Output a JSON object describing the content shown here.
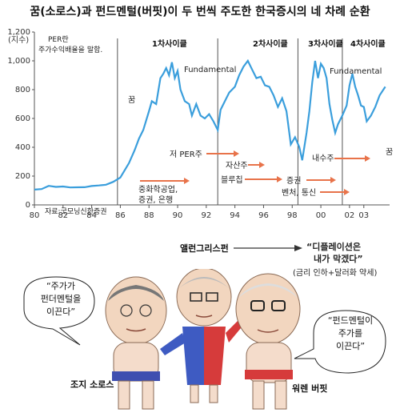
{
  "title": "꿈(소로스)과 펀드멘털(버핏)이 두 번씩 주도한 한국증시의 네 차례 순환",
  "chart_data": {
    "type": "line",
    "ylabel": "(지수)",
    "ylim": [
      0,
      1200
    ],
    "yticks": [
      0,
      200,
      400,
      600,
      800,
      1000,
      1200
    ],
    "ytick_labels": [
      "0",
      "200",
      "400",
      "600",
      "800",
      "1,000",
      "1,200"
    ],
    "xlim": [
      1980,
      2004.8
    ],
    "xticks": [
      1980,
      1982,
      1984,
      1986,
      1988,
      1990,
      1992,
      1994,
      1996,
      1998,
      2000,
      2002,
      2003
    ],
    "xtick_labels": [
      "80",
      "82",
      "84",
      "86",
      "88",
      "90",
      "92",
      "94",
      "96",
      "98",
      "00",
      "02",
      "03"
    ],
    "x": [
      1980.0,
      1980.5,
      1981.0,
      1981.5,
      1982.0,
      1982.5,
      1983.0,
      1983.5,
      1984.0,
      1984.5,
      1985.0,
      1985.5,
      1986.0,
      1986.3,
      1986.6,
      1987.0,
      1987.3,
      1987.6,
      1988.0,
      1988.2,
      1988.5,
      1988.8,
      1989.0,
      1989.2,
      1989.4,
      1989.6,
      1989.8,
      1990.0,
      1990.2,
      1990.5,
      1990.8,
      1991.0,
      1991.3,
      1991.6,
      1991.9,
      1992.2,
      1992.5,
      1992.8,
      1993.0,
      1993.3,
      1993.6,
      1994.0,
      1994.3,
      1994.6,
      1994.9,
      1995.2,
      1995.5,
      1995.8,
      1996.1,
      1996.4,
      1996.7,
      1997.0,
      1997.3,
      1997.6,
      1997.9,
      1998.2,
      1998.5,
      1998.7,
      1999.0,
      1999.2,
      1999.4,
      1999.6,
      1999.8,
      2000.0,
      2000.2,
      2000.4,
      2000.6,
      2000.8,
      2001.0,
      2001.2,
      2001.5,
      2001.8,
      2002.0,
      2002.2,
      2002.4,
      2002.6,
      2002.8,
      2003.0,
      2003.2,
      2003.5,
      2003.8,
      2004.1,
      2004.5
    ],
    "series": [
      {
        "values": [
          106,
          110,
          132,
          125,
          128,
          121,
          122,
          123,
          131,
          135,
          140,
          160,
          190,
          240,
          290,
          380,
          460,
          520,
          650,
          720,
          700,
          880,
          910,
          950,
          900,
          990,
          880,
          930,
          800,
          720,
          700,
          620,
          700,
          620,
          600,
          630,
          580,
          520,
          660,
          720,
          780,
          820,
          900,
          960,
          1000,
          940,
          880,
          890,
          830,
          820,
          760,
          680,
          740,
          650,
          420,
          470,
          400,
          310,
          500,
          650,
          850,
          1000,
          880,
          980,
          950,
          880,
          700,
          590,
          500,
          560,
          620,
          690,
          830,
          910,
          820,
          760,
          690,
          680,
          580,
          620,
          680,
          760,
          820
        ]
      }
    ],
    "cycles": [
      "1차사이클",
      "2차사이클",
      "3차사이클",
      "4차사이클"
    ],
    "labels": {
      "per_note_1": "PER란",
      "per_note_2": "주가수익배율을 말함.",
      "dream_1": "꿈",
      "dream_2": "꿈",
      "fundamental_1": "Fundamental",
      "fundamental_2": "Fundamental",
      "low_per": "저 PER주",
      "asset": "자산주",
      "blue_chip": "블루칩",
      "heavy_1": "중화학공업,",
      "heavy_2": "증권, 은행",
      "securities": "증권",
      "venture": "벤처, 통신",
      "domestic": "내수주",
      "source": "자료:굿모닝신한증권"
    }
  },
  "greenspan": {
    "name": "앨런그리스펀",
    "quote_1": "“디플레이션은",
    "quote_2": "내가 막겠다”",
    "note": "(금리 인하+달러화 약세)"
  },
  "soros": {
    "name": "조지 소로스",
    "quote_1": "“주가가",
    "quote_2": "펀더멘털을",
    "quote_3": "이끈다”"
  },
  "buffett": {
    "name": "워렌 버핏",
    "quote_1": "“펀드멘털이",
    "quote_2": "주가를",
    "quote_3": "이끈다”"
  },
  "colors": {
    "line": "#3a9edc",
    "arrow": "#e8734a",
    "axis": "#555555",
    "soros_sash": "#3f4fb0",
    "greenspan_red": "#d63b3b",
    "greenspan_blue": "#3e5bc2",
    "buffett_sash": "#d63b3b"
  }
}
